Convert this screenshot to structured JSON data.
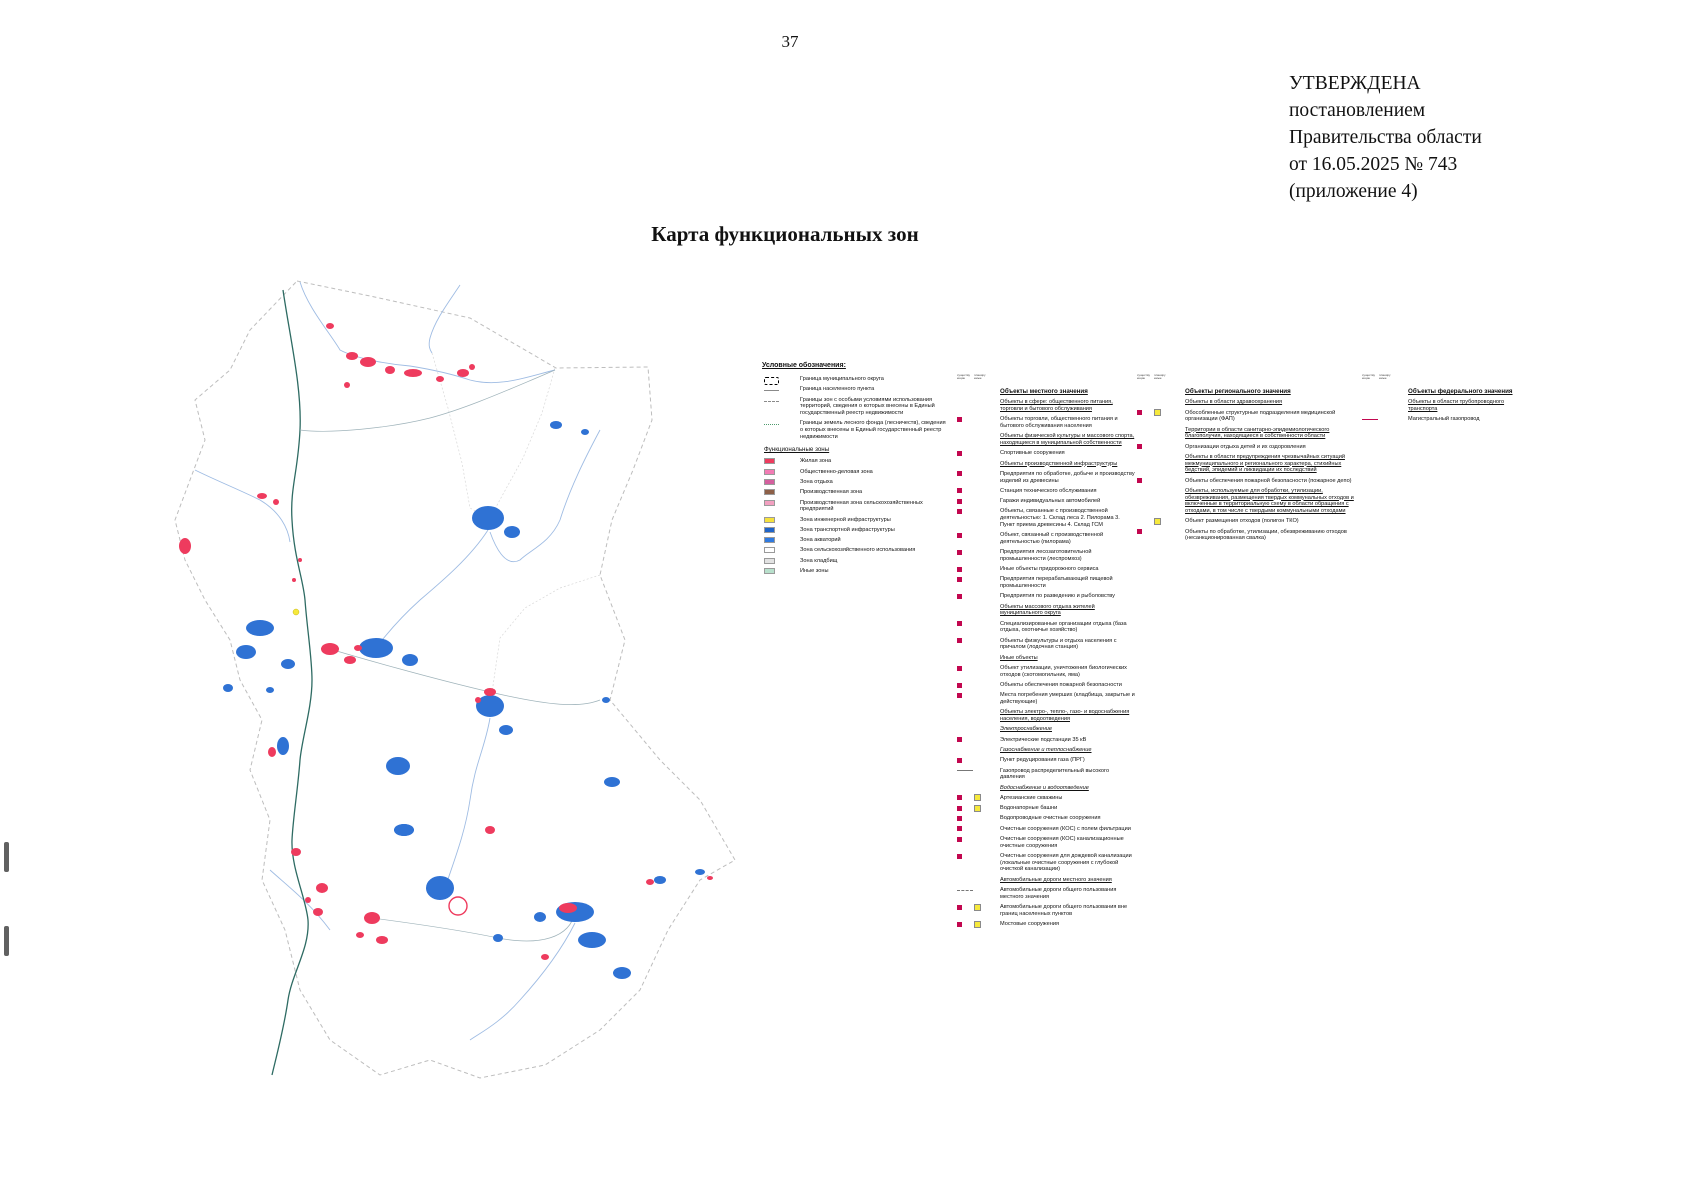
{
  "page": {
    "number": "37",
    "title": "Карта функциональных зон"
  },
  "approval": {
    "lines": [
      "УТВЕРЖДЕНА",
      "постановлением",
      "Правительства области",
      "от 16.05.2025 № 743",
      "(приложение 4)"
    ]
  },
  "colors": {
    "residential_zone": "#ee3b5e",
    "water": "#2f72d4",
    "existing_marker": "#c2074f",
    "planned_marker": "#f6e93c"
  },
  "legend": {
    "heading": "Условные обозначения:",
    "status_columns": [
      "существующие",
      "планируемые"
    ],
    "boundaries": [
      {
        "sym": "b-municipal",
        "label": "Граница муниципального округа"
      },
      {
        "sym": "b-settlement",
        "label": "Граница населенного пункта"
      },
      {
        "sym": "b-zouit",
        "label": "Границы зон с особыми условиями использования территорий, сведения о которых внесены в Единый государственный реестр недвижимости"
      },
      {
        "sym": "b-forest",
        "label": "Границы земель лесного фонда (лесничеств), сведения о которых внесены в Единый государственный реестр недвижимости"
      }
    ],
    "zones_heading": "Функциональные зоны",
    "zones": [
      {
        "color": "#ee3b5e",
        "label": "Жилая зона"
      },
      {
        "color": "#f27bb4",
        "label": "Общественно-деловая зона"
      },
      {
        "color": "#d45f9e",
        "label": "Зона отдыха"
      },
      {
        "color": "#8d6048",
        "label": "Производственная зона"
      },
      {
        "color": "#f2a0c0",
        "label": "Производственная зона сельскохозяйственных предприятий"
      },
      {
        "color": "#f5e13d",
        "label": "Зона инженерной инфраструктуры"
      },
      {
        "color": "#1f64c8",
        "label": "Зона транспортной инфраструктуры"
      },
      {
        "color": "#2f7ae0",
        "label": "Зона акваторий"
      },
      {
        "color": "#ffffff",
        "label": "Зона сельскохозяйственного использования"
      },
      {
        "color": "#e2e2e2",
        "label": "Зона кладбищ"
      },
      {
        "color": "#b8e0cc",
        "label": "Иные зоны"
      }
    ],
    "columns": {
      "local": {
        "items": [
          {
            "type": "title",
            "label": "Объекты местного значения"
          },
          {
            "type": "header",
            "label": "Объекты в сфере: общественного питания, торговли и бытового обслуживания"
          },
          {
            "type": "item",
            "sym": [
              "red"
            ],
            "label": "Объекты торговли, общественного питания и бытового обслуживания населения"
          },
          {
            "type": "header",
            "label": "Объекты физической культуры и массового спорта, находящиеся в муниципальной собственности"
          },
          {
            "type": "item",
            "sym": [
              "red"
            ],
            "label": "Спортивные сооружения"
          },
          {
            "type": "header",
            "label": "Объекты производственной инфраструктуры"
          },
          {
            "type": "item",
            "sym": [
              "red"
            ],
            "label": "Предприятия по обработке, добыче и производству изделий из древесины"
          },
          {
            "type": "item",
            "sym": [
              "red"
            ],
            "label": "Станция технического обслуживания"
          },
          {
            "type": "item",
            "sym": [
              "red"
            ],
            "label": "Гаражи индивидуальных автомобилей"
          },
          {
            "type": "item",
            "sym": [
              "red"
            ],
            "label": "Объекты, связанные с производственной деятельностью: 1. Склад леса 2. Пилорама 3. Пункт приема древесины 4. Склад ГСМ"
          },
          {
            "type": "item",
            "sym": [
              "red"
            ],
            "label": "Объект, связанный с производственной деятельностью (пилорама)"
          },
          {
            "type": "item",
            "sym": [
              "red"
            ],
            "label": "Предприятия лесозаготовительной промышленности (леспромхоз)"
          },
          {
            "type": "item",
            "sym": [
              "red"
            ],
            "label": "Иные объекты придорожного сервиса"
          },
          {
            "type": "item",
            "sym": [
              "red"
            ],
            "label": "Предприятия перерабатывающей пищевой промышленности"
          },
          {
            "type": "item",
            "sym": [
              "red"
            ],
            "label": "Предприятия по разведению и рыболовству"
          },
          {
            "type": "header",
            "label": "Объекты массового отдыха жителей муниципального округа"
          },
          {
            "type": "item",
            "sym": [
              "red"
            ],
            "label": "Специализированные организации отдыха (база отдыха, охотничье хозяйство)"
          },
          {
            "type": "item",
            "sym": [
              "red"
            ],
            "label": "Объекты физкультуры и отдыха населения с причалом (лодочная станция)"
          },
          {
            "type": "header",
            "label": "Иные объекты"
          },
          {
            "type": "item",
            "sym": [
              "red"
            ],
            "label": "Объект утилизации, уничтожения биологических отходов (скотомогильник, яма)"
          },
          {
            "type": "item",
            "sym": [
              "red"
            ],
            "label": "Объекты обеспечения пожарной безопасности"
          },
          {
            "type": "item",
            "sym": [
              "red"
            ],
            "label": "Места погребения умерших (кладбища, закрытые и действующие)"
          },
          {
            "type": "header",
            "label": "Объекты электро-, тепло-, газо- и водоснабжения населения, водоотведения"
          },
          {
            "type": "subheader",
            "label": "Электроснабжение"
          },
          {
            "type": "item",
            "sym": [
              "red"
            ],
            "label": "Электрические подстанции 35 кВ"
          },
          {
            "type": "subheader",
            "label": "Газоснабжение и теплоснабжение"
          },
          {
            "type": "item",
            "sym": [
              "red"
            ],
            "label": "Пункт редуцирования газа (ПРГ)"
          },
          {
            "type": "item",
            "sym": [
              "line"
            ],
            "label": "Газопровод распределительный высокого давления"
          },
          {
            "type": "subheader",
            "label": "Водоснабжение и водоотведение"
          },
          {
            "type": "item",
            "sym": [
              "red",
              "yellow"
            ],
            "label": "Артезианские скважины"
          },
          {
            "type": "item",
            "sym": [
              "red",
              "yellow"
            ],
            "label": "Водонапорные башни"
          },
          {
            "type": "item",
            "sym": [
              "red"
            ],
            "label": "Водопроводные очистные сооружения"
          },
          {
            "type": "item",
            "sym": [
              "red"
            ],
            "label": "Очистные сооружения (КОС) с полем фильтрации"
          },
          {
            "type": "item",
            "sym": [
              "red"
            ],
            "label": "Очистные сооружения (КОС) канализационные очистные сооружения"
          },
          {
            "type": "item",
            "sym": [
              "red"
            ],
            "label": "Очистные сооружения для дождевой канализации (локальные очистные сооружения с глубокой очисткой канализации)"
          },
          {
            "type": "header",
            "label": "Автомобильные дороги местного значения"
          },
          {
            "type": "item",
            "sym": [
              "line-dash"
            ],
            "label": "Автомобильные дороги общего пользования местного значения"
          },
          {
            "type": "item",
            "sym": [
              "red",
              "yellow"
            ],
            "label": "Автомобильные дороги общего пользования вне границ населенных пунктов"
          },
          {
            "type": "item",
            "sym": [
              "red",
              "yellow"
            ],
            "label": "Мостовые сооружения"
          }
        ]
      },
      "regional": {
        "items": [
          {
            "type": "title",
            "label": "Объекты регионального значения"
          },
          {
            "type": "header",
            "label": "Объекты в области здравоохранения"
          },
          {
            "type": "item",
            "sym": [
              "red",
              "yellow"
            ],
            "label": "Обособленные структурные подразделения медицинской организации (ФАП)"
          },
          {
            "type": "header",
            "label": "Территории в области санитарно-эпидемиологического благополучия, находящиеся в собственности области"
          },
          {
            "type": "item",
            "sym": [
              "red"
            ],
            "label": "Организации отдыха детей и их оздоровления"
          },
          {
            "type": "header",
            "label": "Объекты в области предупреждения чрезвычайных ситуаций межмуниципального и регионального характера, стихийных бедствий, эпидемий и ликвидации их последствий"
          },
          {
            "type": "item",
            "sym": [
              "red"
            ],
            "label": "Объекты обеспечения пожарной безопасности (пожарное депо)"
          },
          {
            "type": "header",
            "label": "Объекты, используемые для обработки, утилизации, обезвреживания, размещения твердых коммунальных отходов и включенные в территориальную схему в области обращения с отходами, в том числе с твердыми коммунальными отходами"
          },
          {
            "type": "item",
            "sym": [
              "spacer",
              "yellow"
            ],
            "label": "Объект размещения отходов (полигон ТКО)"
          },
          {
            "type": "item",
            "sym": [
              "red"
            ],
            "label": "Объекты по обработке, утилизации, обезвреживанию отходов (несанкционированная свалка)"
          }
        ]
      },
      "federal": {
        "items": [
          {
            "type": "title",
            "label": "Объекты федерального значения"
          },
          {
            "type": "header",
            "label": "Объекты в области трубопроводного транспорта"
          },
          {
            "type": "item",
            "sym": [
              "line-red"
            ],
            "label": "Магистральный газопровод"
          }
        ]
      }
    }
  }
}
